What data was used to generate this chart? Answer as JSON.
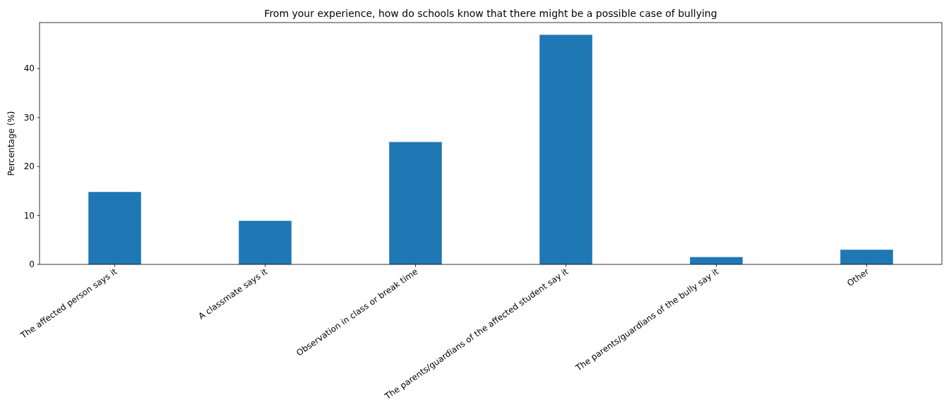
{
  "chart_data": {
    "type": "bar",
    "title": "From your experience, how do schools know that there might be a possible case of bullying",
    "ylabel": "Percentage (%)",
    "categories": [
      "The affected person says it",
      "A classmate says it",
      "Observation in class or break time",
      "The parents/guardians of the affected student say it",
      "The parents/guardians of the bully say it",
      "Other"
    ],
    "values": [
      14.8,
      8.9,
      25.0,
      46.9,
      1.5,
      3.0
    ],
    "color": "#1f77b4",
    "ylim": [
      0,
      49.4
    ],
    "yticks": [
      0,
      10,
      20,
      30,
      40
    ],
    "grid": false
  }
}
